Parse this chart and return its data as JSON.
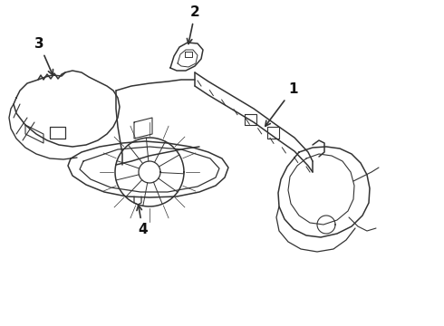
{
  "background_color": "#ffffff",
  "line_color": "#333333",
  "line_width": 1.1,
  "label_fontsize": 11,
  "label_color": "#111111",
  "figsize": [
    4.9,
    3.6
  ],
  "dpi": 100
}
